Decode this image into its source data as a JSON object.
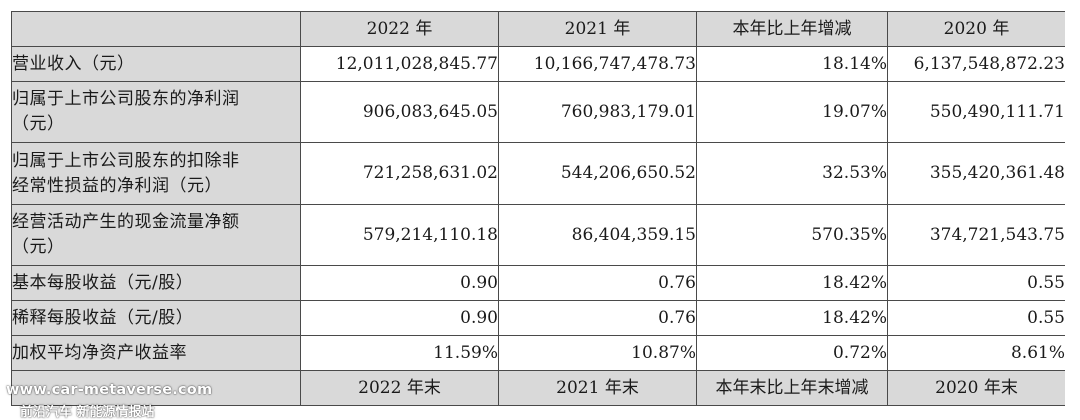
{
  "header": {
    "blank": "",
    "col1": "2022 年",
    "col2": "2021 年",
    "col3": "本年比上年增减",
    "col4": "2020 年"
  },
  "rows": [
    {
      "label": "营业收入（元）",
      "v2022": "12,011,028,845.77",
      "v2021": "10,166,747,478.73",
      "change": "18.14%",
      "v2020": "6,137,548,872.23"
    },
    {
      "label": "归属于上市公司股东的净利润（元）",
      "label_line1": "归属于上市公司股东的净利润",
      "label_line2": "（元）",
      "v2022": "906,083,645.05",
      "v2021": "760,983,179.01",
      "change": "19.07%",
      "v2020": "550,490,111.71"
    },
    {
      "label": "归属于上市公司股东的扣除非经常性损益的净利润（元）",
      "label_line1": "归属于上市公司股东的扣除非",
      "label_line2": "经常性损益的净利润（元）",
      "v2022": "721,258,631.02",
      "v2021": "544,206,650.52",
      "change": "32.53%",
      "v2020": "355,420,361.48"
    },
    {
      "label": "经营活动产生的现金流量净额（元）",
      "label_line1": "经营活动产生的现金流量净额",
      "label_line2": "（元）",
      "v2022": "579,214,110.18",
      "v2021": "86,404,359.15",
      "change": "570.35%",
      "v2020": "374,721,543.75"
    },
    {
      "label": "基本每股收益（元/股）",
      "v2022": "0.90",
      "v2021": "0.76",
      "change": "18.42%",
      "v2020": "0.55"
    },
    {
      "label": "稀释每股收益（元/股）",
      "v2022": "0.90",
      "v2021": "0.76",
      "change": "18.42%",
      "v2020": "0.55"
    },
    {
      "label": "加权平均净资产收益率",
      "v2022": "11.59%",
      "v2021": "10.87%",
      "change": "0.72%",
      "v2020": "8.61%"
    }
  ],
  "subheader": {
    "blank": "",
    "col1": "2022 年末",
    "col2": "2021 年末",
    "col3": "本年末比上年末增减",
    "col4": "2020 年末"
  },
  "watermark": {
    "line1": "www.car-metaverse.com",
    "line2": "前沿汽车 新能源情报站"
  }
}
